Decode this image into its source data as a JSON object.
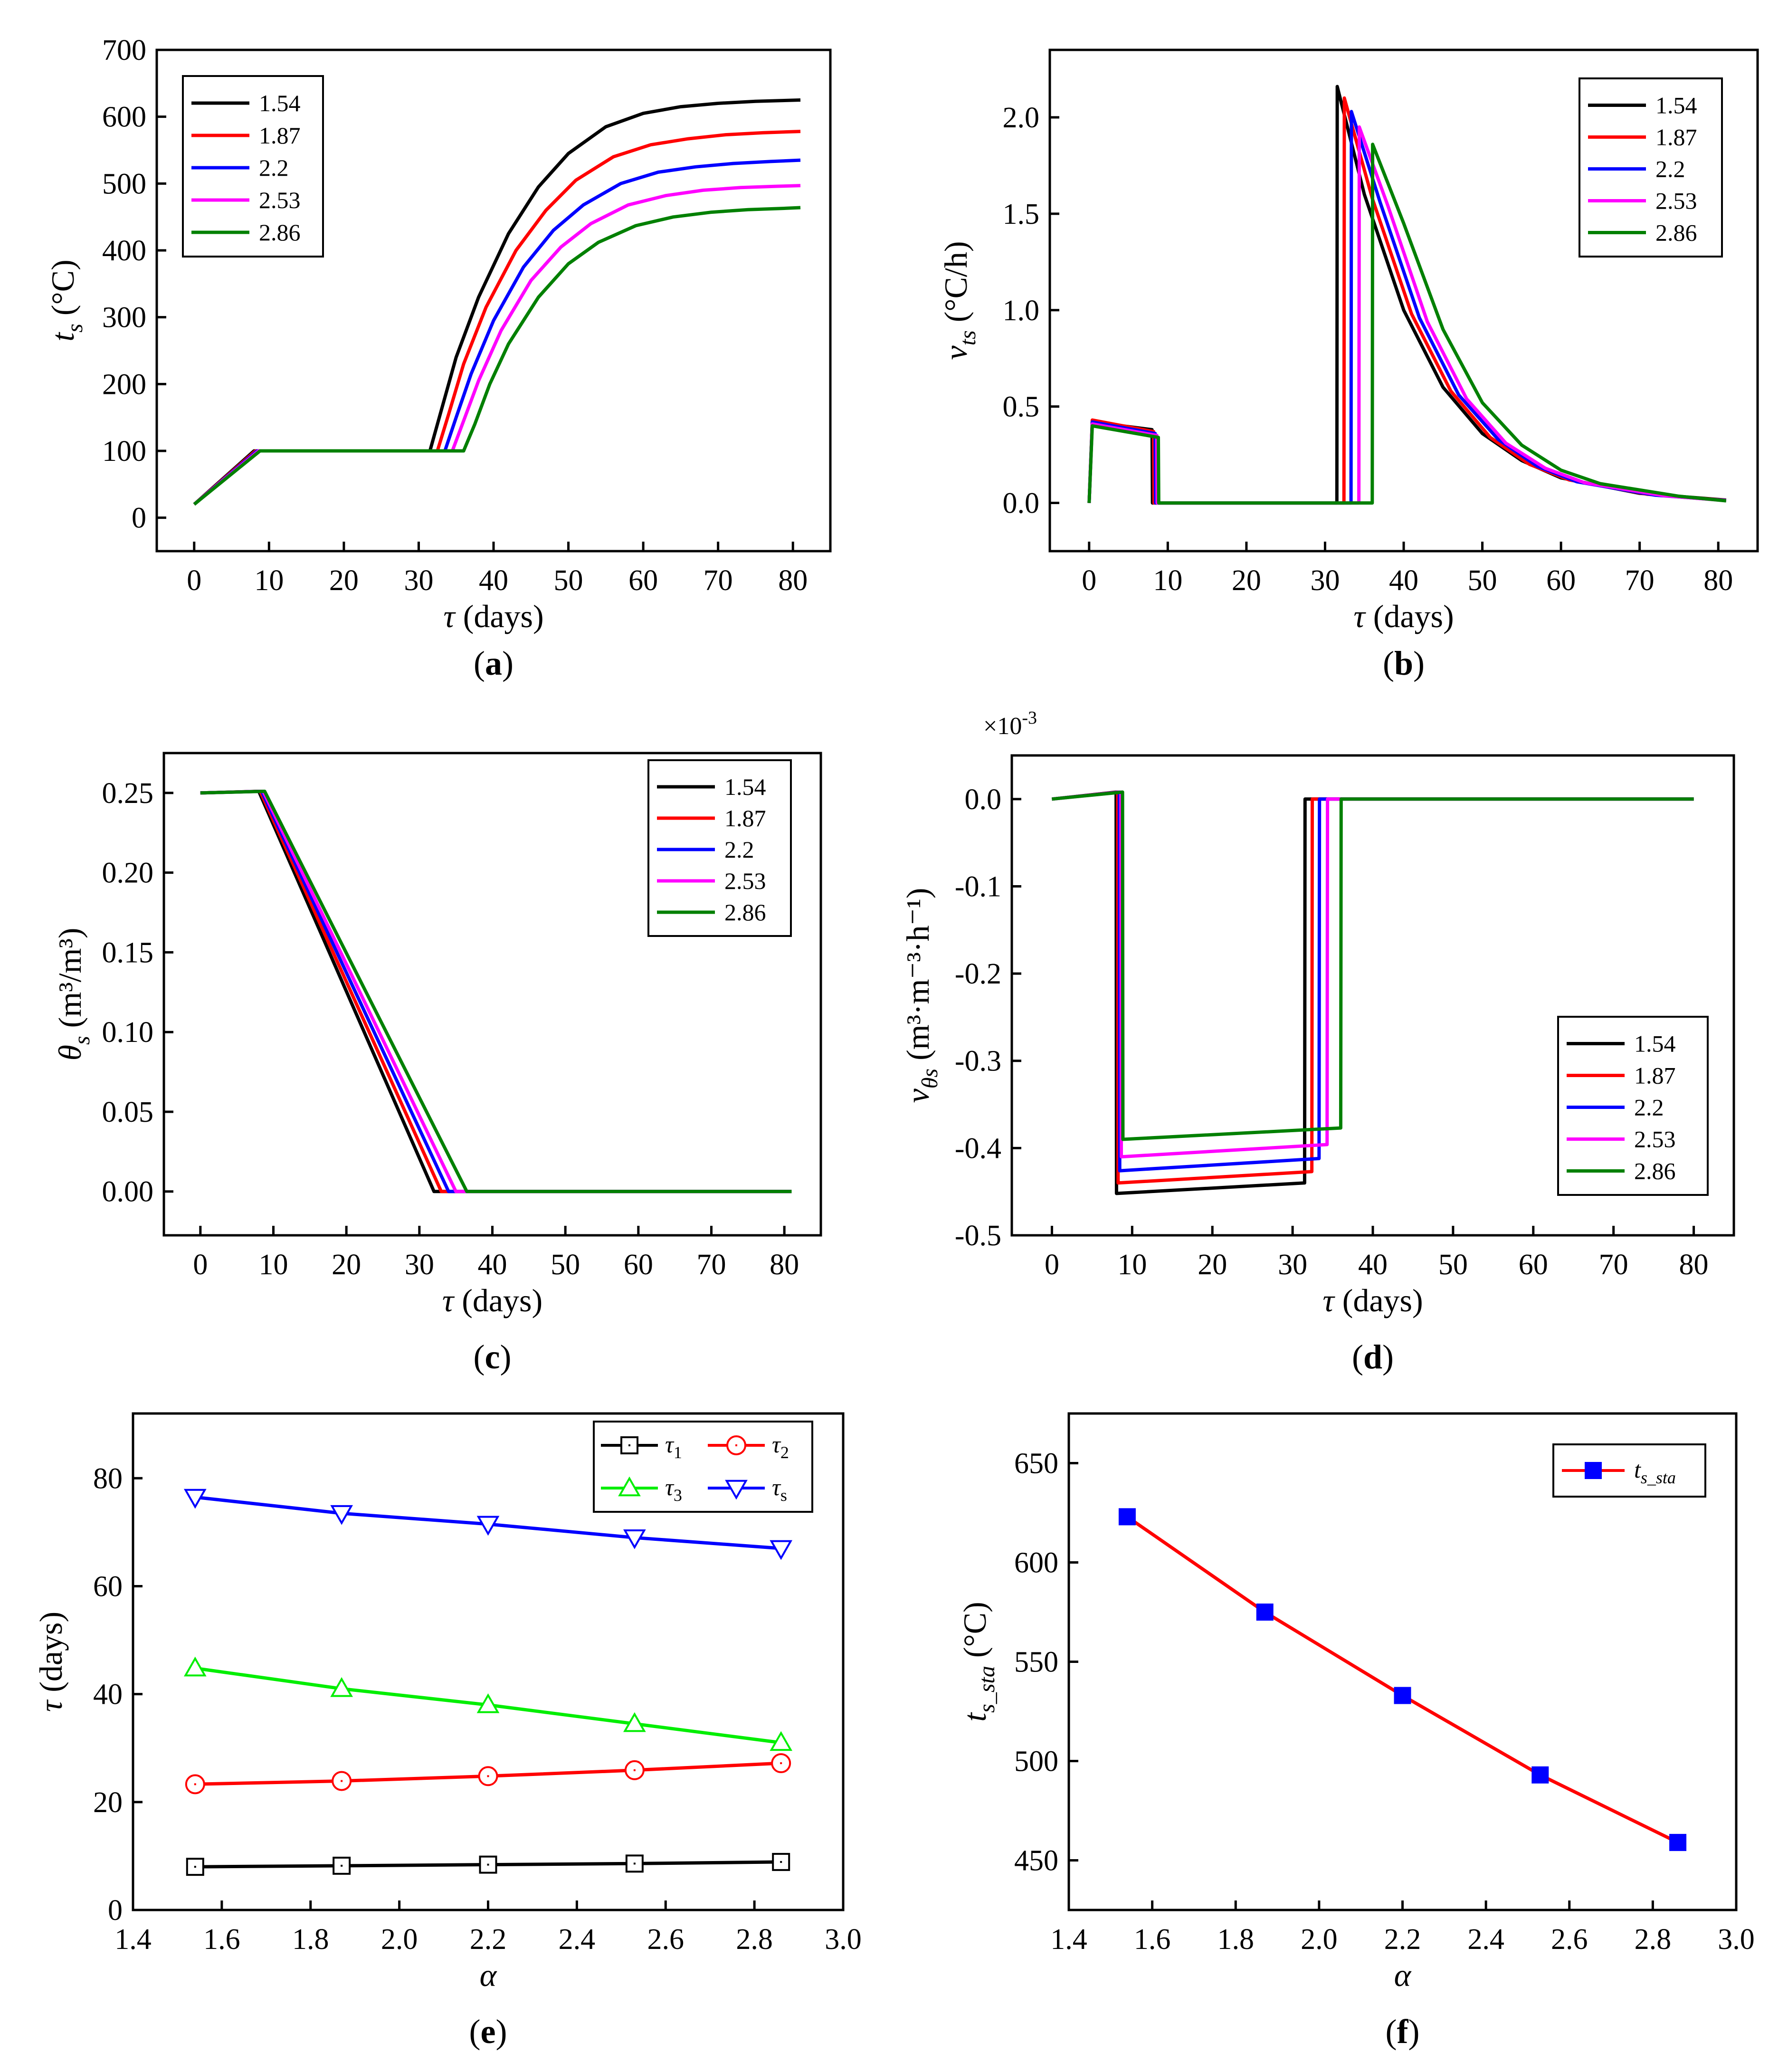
{
  "panel_labels": [
    "a",
    "b",
    "c",
    "d",
    "e",
    "f"
  ],
  "colors": {
    "c1": "#000000",
    "c2": "#ff0000",
    "c3": "#0000ff",
    "c4": "#ff00ff",
    "c5": "#008000",
    "light_green": "#00ee00",
    "marker_blue": "#0000ff"
  },
  "chart_data": [
    {
      "id": "a",
      "type": "line",
      "label": "a",
      "xlabel_sym": "τ",
      "xlabel_unit": " (days)",
      "ylabel_sym": "t",
      "ylabel_sub": "s",
      "ylabel_unit": " (°C)",
      "xlim": [
        -5,
        85
      ],
      "ylim": [
        -50,
        700
      ],
      "xticks": [
        0,
        10,
        20,
        30,
        40,
        50,
        60,
        70,
        80
      ],
      "yticks": [
        0,
        100,
        200,
        300,
        400,
        500,
        600,
        700
      ],
      "legend_position": "top-left",
      "series": [
        {
          "name": "1.54",
          "color": "#000000",
          "x": [
            0,
            8.0,
            31.5,
            33,
            35,
            38,
            42,
            46,
            50,
            55,
            60,
            65,
            70,
            75,
            81
          ],
          "y": [
            20,
            100,
            100,
            160,
            240,
            330,
            425,
            495,
            545,
            585,
            605,
            615,
            620,
            623,
            625
          ]
        },
        {
          "name": "1.87",
          "color": "#ff0000",
          "x": [
            0,
            8.2,
            32.5,
            34,
            36,
            39,
            43,
            47,
            51,
            56,
            61,
            66,
            71,
            76,
            81
          ],
          "y": [
            20,
            100,
            100,
            155,
            230,
            315,
            400,
            460,
            505,
            540,
            558,
            567,
            573,
            576,
            578
          ]
        },
        {
          "name": "2.2",
          "color": "#0000ff",
          "x": [
            0,
            8.4,
            33.5,
            35,
            37,
            40,
            44,
            48,
            52,
            57,
            62,
            67,
            72,
            77,
            81
          ],
          "y": [
            20,
            100,
            100,
            150,
            215,
            295,
            375,
            430,
            468,
            500,
            517,
            525,
            530,
            533,
            535
          ]
        },
        {
          "name": "2.53",
          "color": "#ff00ff",
          "x": [
            0,
            8.6,
            34.5,
            36,
            38,
            41,
            45,
            49,
            53,
            58,
            63,
            68,
            73,
            78,
            81
          ],
          "y": [
            20,
            100,
            100,
            145,
            205,
            280,
            355,
            405,
            440,
            468,
            482,
            490,
            494,
            496,
            497
          ]
        },
        {
          "name": "2.86",
          "color": "#008000",
          "x": [
            0,
            8.8,
            36,
            37.5,
            39.5,
            42,
            46,
            50,
            54,
            59,
            64,
            69,
            74,
            79,
            81
          ],
          "y": [
            20,
            100,
            100,
            140,
            200,
            260,
            330,
            380,
            412,
            437,
            450,
            457,
            461,
            463,
            464
          ]
        }
      ]
    },
    {
      "id": "b",
      "type": "line",
      "label": "b",
      "xlabel_sym": "τ",
      "xlabel_unit": " (days)",
      "ylabel_sym": "v",
      "ylabel_sub": "ts",
      "ylabel_unit": " (°C/h)",
      "xlim": [
        -5,
        85
      ],
      "ylim": [
        -0.25,
        2.35
      ],
      "xticks": [
        0,
        10,
        20,
        30,
        40,
        50,
        60,
        70,
        80
      ],
      "yticks": [
        0.0,
        0.5,
        1.0,
        1.5,
        2.0
      ],
      "ytick_labels": [
        "0.0",
        "0.5",
        "1.0",
        "1.5",
        "2.0"
      ],
      "legend_position": "top-right",
      "series": [
        {
          "name": "1.54",
          "color": "#000000",
          "x": [
            0,
            0.4,
            8.0,
            8.05,
            31.5,
            31.55,
            35,
            40,
            45,
            50,
            55,
            60,
            70,
            81
          ],
          "y": [
            0,
            0.42,
            0.38,
            0,
            0,
            2.16,
            1.6,
            1.0,
            0.6,
            0.36,
            0.22,
            0.13,
            0.05,
            0.015
          ]
        },
        {
          "name": "1.87",
          "color": "#ff0000",
          "x": [
            0,
            0.4,
            8.2,
            8.25,
            32.4,
            32.45,
            36,
            41,
            46,
            51,
            56,
            61,
            71,
            81
          ],
          "y": [
            0,
            0.43,
            0.37,
            0,
            0,
            2.1,
            1.58,
            0.98,
            0.58,
            0.34,
            0.2,
            0.12,
            0.045,
            0.014
          ]
        },
        {
          "name": "2.2",
          "color": "#0000ff",
          "x": [
            0,
            0.4,
            8.4,
            8.45,
            33.3,
            33.35,
            37,
            42,
            47,
            52,
            57,
            62,
            72,
            81
          ],
          "y": [
            0,
            0.42,
            0.36,
            0,
            0,
            2.03,
            1.56,
            0.96,
            0.56,
            0.33,
            0.19,
            0.11,
            0.04,
            0.013
          ]
        },
        {
          "name": "2.53",
          "color": "#ff00ff",
          "x": [
            0,
            0.4,
            8.6,
            8.65,
            34.3,
            34.35,
            38,
            43,
            48,
            53,
            58,
            63,
            73,
            81
          ],
          "y": [
            0,
            0.41,
            0.35,
            0,
            0,
            1.95,
            1.54,
            0.94,
            0.54,
            0.31,
            0.18,
            0.105,
            0.038,
            0.012
          ]
        },
        {
          "name": "2.86",
          "color": "#008000",
          "x": [
            0,
            0.4,
            8.8,
            8.85,
            36.0,
            36.05,
            40,
            45,
            50,
            55,
            60,
            65,
            75,
            81
          ],
          "y": [
            0,
            0.4,
            0.34,
            0,
            0,
            1.86,
            1.45,
            0.9,
            0.52,
            0.3,
            0.17,
            0.1,
            0.035,
            0.011
          ]
        }
      ]
    },
    {
      "id": "c",
      "type": "line",
      "label": "c",
      "xlabel_sym": "τ",
      "xlabel_unit": " (days)",
      "ylabel_sym": "θ",
      "ylabel_sub": "s",
      "ylabel_unit": " (m³/m³)",
      "xlim": [
        -5,
        85
      ],
      "ylim": [
        -0.0275,
        0.275
      ],
      "xticks": [
        0,
        10,
        20,
        30,
        40,
        50,
        60,
        70,
        80
      ],
      "yticks": [
        0.0,
        0.05,
        0.1,
        0.15,
        0.2,
        0.25
      ],
      "ytick_labels": [
        "0.00",
        "0.05",
        "0.10",
        "0.15",
        "0.20",
        "0.25"
      ],
      "legend_position": "top-right",
      "series": [
        {
          "name": "1.54",
          "color": "#000000",
          "x": [
            0,
            8.0,
            32.0,
            81
          ],
          "y": [
            0.25,
            0.251,
            0.0,
            0.0
          ]
        },
        {
          "name": "1.87",
          "color": "#ff0000",
          "x": [
            0,
            8.2,
            33.0,
            81
          ],
          "y": [
            0.25,
            0.251,
            0.0,
            0.0
          ]
        },
        {
          "name": "2.2",
          "color": "#0000ff",
          "x": [
            0,
            8.4,
            34.0,
            81
          ],
          "y": [
            0.25,
            0.251,
            0.0,
            0.0
          ]
        },
        {
          "name": "2.53",
          "color": "#ff00ff",
          "x": [
            0,
            8.6,
            35.0,
            81
          ],
          "y": [
            0.25,
            0.251,
            0.0,
            0.0
          ]
        },
        {
          "name": "2.86",
          "color": "#008000",
          "x": [
            0,
            8.8,
            36.5,
            81
          ],
          "y": [
            0.25,
            0.251,
            0.0,
            0.0
          ]
        }
      ]
    },
    {
      "id": "d",
      "type": "line",
      "label": "d",
      "scale_note": "×10",
      "scale_exp": "-3",
      "xlabel_sym": "τ",
      "xlabel_unit": " (days)",
      "ylabel_sym": "v",
      "ylabel_sub": "θs",
      "ylabel_unit": " (m³·m⁻³·h⁻¹)",
      "xlim": [
        -5,
        85
      ],
      "ylim": [
        -0.5,
        0.05
      ],
      "xticks": [
        0,
        10,
        20,
        30,
        40,
        50,
        60,
        70,
        80
      ],
      "yticks": [
        0.0,
        -0.1,
        -0.2,
        -0.3,
        -0.4,
        -0.5
      ],
      "ytick_labels": [
        "0.0",
        "-0.1",
        "-0.2",
        "-0.3",
        "-0.4",
        "-0.5"
      ],
      "legend_position": "bottom-right",
      "series": [
        {
          "name": "1.54",
          "color": "#000000",
          "x": [
            0,
            8.0,
            8.05,
            31.5,
            31.55,
            80
          ],
          "y": [
            0,
            0.008,
            -0.452,
            -0.44,
            0,
            0
          ]
        },
        {
          "name": "1.87",
          "color": "#ff0000",
          "x": [
            0,
            8.2,
            8.25,
            32.4,
            32.45,
            80
          ],
          "y": [
            0,
            0.008,
            -0.44,
            -0.427,
            0,
            0
          ]
        },
        {
          "name": "2.2",
          "color": "#0000ff",
          "x": [
            0,
            8.4,
            8.45,
            33.3,
            33.35,
            80
          ],
          "y": [
            0,
            0.008,
            -0.426,
            -0.412,
            0,
            0
          ]
        },
        {
          "name": "2.53",
          "color": "#ff00ff",
          "x": [
            0,
            8.6,
            8.65,
            34.3,
            34.35,
            80
          ],
          "y": [
            0,
            0.008,
            -0.41,
            -0.396,
            0,
            0
          ]
        },
        {
          "name": "2.86",
          "color": "#008000",
          "x": [
            0,
            8.8,
            8.85,
            36.0,
            36.05,
            80
          ],
          "y": [
            0,
            0.008,
            -0.39,
            -0.377,
            0,
            0
          ]
        }
      ]
    },
    {
      "id": "e",
      "type": "line",
      "label": "e",
      "xlabel_sym": "α",
      "xlabel_unit": "",
      "ylabel_sym": "τ",
      "ylabel_sub": "",
      "ylabel_unit": " (days)",
      "xlim": [
        1.4,
        3.0
      ],
      "ylim": [
        0,
        92
      ],
      "xticks": [
        1.4,
        1.6,
        1.8,
        2.0,
        2.2,
        2.4,
        2.6,
        2.8,
        3.0
      ],
      "xtick_labels": [
        "1.4",
        "1.6",
        "1.8",
        "2.0",
        "2.2",
        "2.4",
        "2.6",
        "2.8",
        "3.0"
      ],
      "yticks": [
        0,
        20,
        40,
        60,
        80
      ],
      "legend_position": "top-right",
      "x": [
        1.54,
        1.87,
        2.2,
        2.53,
        2.86
      ],
      "series": [
        {
          "name": "τ",
          "sub": "1",
          "color": "#000000",
          "marker": "square",
          "values": [
            8.0,
            8.2,
            8.4,
            8.6,
            8.9
          ]
        },
        {
          "name": "τ",
          "sub": "2",
          "color": "#ff0000",
          "marker": "circle",
          "values": [
            23.3,
            23.9,
            24.8,
            25.9,
            27.2
          ]
        },
        {
          "name": "τ",
          "sub": "3",
          "color": "#00ee00",
          "marker": "triangle-up",
          "values": [
            44.8,
            41.0,
            38.0,
            34.5,
            31.0
          ]
        },
        {
          "name": "τ",
          "sub": "s",
          "color": "#0000ff",
          "marker": "triangle-down",
          "values": [
            76.5,
            73.5,
            71.5,
            69.0,
            67.0
          ]
        }
      ]
    },
    {
      "id": "f",
      "type": "line",
      "label": "f",
      "xlabel_sym": "α",
      "xlabel_unit": "",
      "ylabel_sym": "t",
      "ylabel_sub": "s_sta",
      "ylabel_unit": " (°C)",
      "xlim": [
        1.4,
        3.0
      ],
      "ylim": [
        425,
        675
      ],
      "xticks": [
        1.4,
        1.6,
        1.8,
        2.0,
        2.2,
        2.4,
        2.6,
        2.8,
        3.0
      ],
      "xtick_labels": [
        "1.4",
        "1.6",
        "1.8",
        "2.0",
        "2.2",
        "2.4",
        "2.6",
        "2.8",
        "3.0"
      ],
      "yticks": [
        450,
        500,
        550,
        600,
        650
      ],
      "legend_position": "top-right",
      "x": [
        1.54,
        1.87,
        2.2,
        2.53,
        2.86
      ],
      "series": [
        {
          "name": "t",
          "sub": "s_sta",
          "color": "#ff0000",
          "marker_color": "#0000ff",
          "marker": "filled-square",
          "values": [
            623,
            575,
            533,
            493,
            459
          ]
        }
      ]
    }
  ]
}
